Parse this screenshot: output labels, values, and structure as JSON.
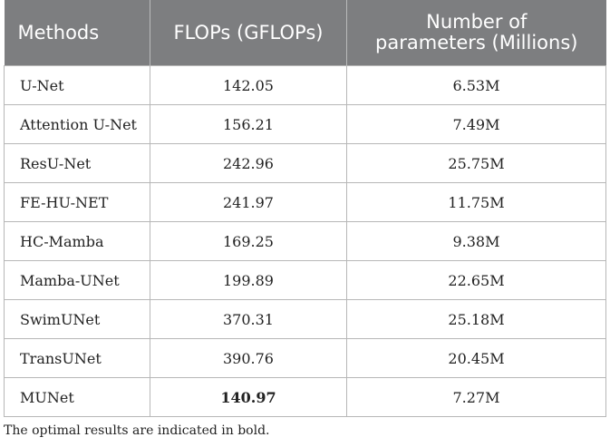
{
  "table": {
    "headers": {
      "methods": "Methods",
      "flops": "FLOPs (GFLOPs)",
      "params_line1": "Number of",
      "params_line2": "parameters (Millions)"
    },
    "rows": [
      {
        "method": "U-Net",
        "flops": "142.05",
        "params": "6.53M"
      },
      {
        "method": "Attention U-Net",
        "flops": "156.21",
        "params": "7.49M"
      },
      {
        "method": "ResU-Net",
        "flops": "242.96",
        "params": "25.75M"
      },
      {
        "method": "FE-HU-NET",
        "flops": "241.97",
        "params": "11.75M"
      },
      {
        "method": "HC-Mamba",
        "flops": "169.25",
        "params": "9.38M"
      },
      {
        "method": "Mamba-UNet",
        "flops": "199.89",
        "params": "22.65M"
      },
      {
        "method": "SwimUNet",
        "flops": "370.31",
        "params": "25.18M"
      },
      {
        "method": "TransUNet",
        "flops": "390.76",
        "params": "20.45M"
      },
      {
        "method": "MUNet",
        "flops": "140.97",
        "params": "7.27M"
      }
    ]
  },
  "footnote": "The optimal results are indicated in bold.",
  "colors": {
    "header_bg": "#7d7e80",
    "header_text": "#ffffff",
    "border": "#b7b7b7"
  }
}
